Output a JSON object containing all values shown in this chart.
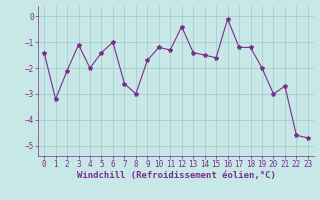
{
  "x": [
    0,
    1,
    2,
    3,
    4,
    5,
    6,
    7,
    8,
    9,
    10,
    11,
    12,
    13,
    14,
    15,
    16,
    17,
    18,
    19,
    20,
    21,
    22,
    23
  ],
  "y": [
    -1.4,
    -3.2,
    -2.1,
    -1.1,
    -2.0,
    -1.4,
    -1.0,
    -2.6,
    -3.0,
    -1.7,
    -1.2,
    -1.3,
    -0.4,
    -1.4,
    -1.5,
    -1.6,
    -0.1,
    -1.2,
    -1.2,
    -2.0,
    -3.0,
    -2.7,
    -4.6,
    -4.7
  ],
  "line_color": "#7b2d8b",
  "marker": "*",
  "marker_size": 3,
  "bg_color": "#c8e8e8",
  "grid_color": "#a0c8c8",
  "xlabel": "Windchill (Refroidissement éolien,°C)",
  "xlim": [
    -0.5,
    23.5
  ],
  "ylim": [
    -5.4,
    0.4
  ],
  "yticks": [
    0,
    -1,
    -2,
    -3,
    -4,
    -5
  ],
  "xticks": [
    0,
    1,
    2,
    3,
    4,
    5,
    6,
    7,
    8,
    9,
    10,
    11,
    12,
    13,
    14,
    15,
    16,
    17,
    18,
    19,
    20,
    21,
    22,
    23
  ],
  "tick_label_size": 5.5,
  "xlabel_size": 6.5,
  "line_width": 0.8
}
